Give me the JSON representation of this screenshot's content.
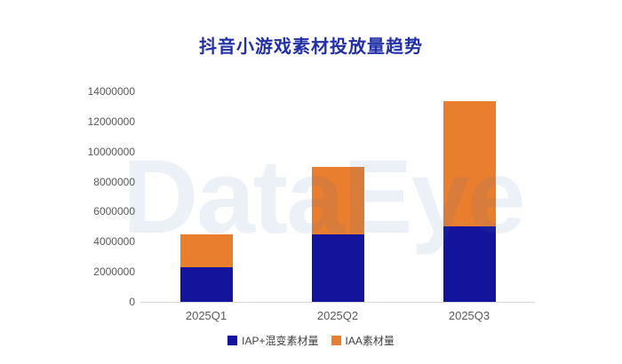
{
  "watermark_text": "DataEye",
  "colors": {
    "title": "#2230A8",
    "iap_blue": "#13139C",
    "iaa_orange": "#E87E2E",
    "axis_text": "#595959",
    "axis_line": "#D9D9D9",
    "legend_text": "#404040",
    "watermark": "rgba(70,110,180,0.10)"
  },
  "chart_data": {
    "type": "bar",
    "stacked": true,
    "title": "抖音小游戏素材投放量趋势",
    "categories": [
      "2025Q1",
      "2025Q2",
      "2025Q3"
    ],
    "series": [
      {
        "name": "IAP+混变素材量",
        "color": "#13139C",
        "values": [
          2300000,
          4500000,
          5000000
        ]
      },
      {
        "name": "IAA素材量",
        "color": "#E87E2E",
        "values": [
          2160000,
          4450000,
          8350000
        ]
      }
    ],
    "totals": [
      4460000,
      8950000,
      13350000
    ],
    "xlabel": "",
    "ylabel": "",
    "ylim": [
      0,
      14000000
    ],
    "y_tick_step": 2000000,
    "y_ticks": [
      "0",
      "2000000",
      "4000000",
      "6000000",
      "8000000",
      "10000000",
      "12000000",
      "14000000"
    ],
    "grid": false,
    "legend_position": "bottom"
  }
}
